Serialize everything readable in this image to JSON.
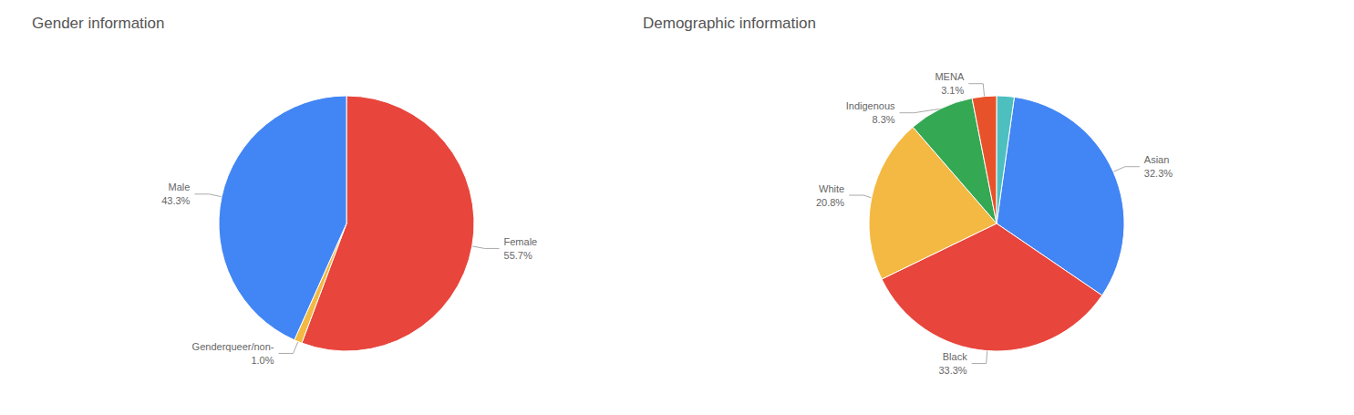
{
  "chart_data": [
    {
      "type": "pie",
      "title": "Gender information",
      "categories": [
        "Female",
        "Genderqueer/non-",
        "Male"
      ],
      "values": [
        55.7,
        1.0,
        43.3
      ],
      "value_labels": [
        "55.7%",
        "1.0%",
        "43.3%"
      ],
      "colors": [
        "#e8453c",
        "#f4b942",
        "#4285f4"
      ]
    },
    {
      "type": "pie",
      "title": "Demographic information",
      "categories": [
        "Asian",
        "Black",
        "White",
        "Indigenous",
        "MENA",
        null
      ],
      "values": [
        32.3,
        33.3,
        20.8,
        8.3,
        3.1,
        2.2
      ],
      "value_labels": [
        "32.3%",
        "33.3%",
        "20.8%",
        "8.3%",
        "3.1%",
        null
      ],
      "colors": [
        "#4285f4",
        "#e8453c",
        "#f4b942",
        "#34a853",
        "#e8522a",
        "#4dbfbf"
      ]
    }
  ]
}
